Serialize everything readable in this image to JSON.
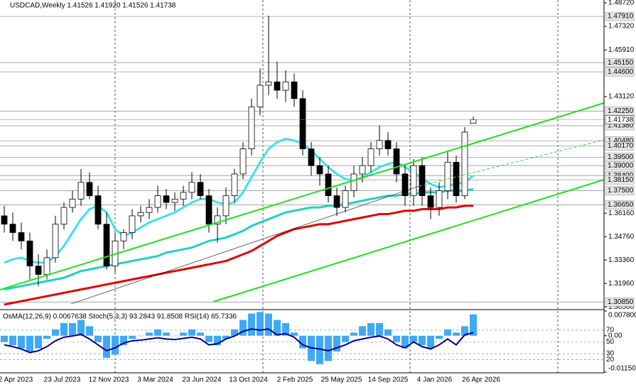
{
  "chart_data": [
    {
      "type": "candlestick",
      "title": "USDCAD,Weekly  1.41526 1.41920 1.41526 1.41738",
      "open": [
        1.36,
        1.355,
        1.35,
        1.345,
        1.33,
        1.325,
        1.335,
        1.355,
        1.365,
        1.37,
        1.38,
        1.372,
        1.355,
        1.33,
        1.345,
        1.35,
        1.36,
        1.362,
        1.365,
        1.372,
        1.368,
        1.37,
        1.374,
        1.38,
        1.372,
        1.355,
        1.36,
        1.372,
        1.385,
        1.4,
        1.425,
        1.438,
        1.44,
        1.435,
        1.44,
        1.43,
        1.4,
        1.39,
        1.385,
        1.372,
        1.365,
        1.375,
        1.385,
        1.39,
        1.4,
        1.405,
        1.4,
        1.385,
        1.372,
        1.39,
        1.372,
        1.365,
        1.375,
        1.392,
        1.372,
        1.41526
      ],
      "high": [
        1.366,
        1.362,
        1.356,
        1.35,
        1.337,
        1.34,
        1.36,
        1.368,
        1.375,
        1.388,
        1.386,
        1.378,
        1.362,
        1.35,
        1.352,
        1.364,
        1.366,
        1.37,
        1.378,
        1.376,
        1.374,
        1.378,
        1.386,
        1.385,
        1.376,
        1.365,
        1.377,
        1.388,
        1.404,
        1.43,
        1.448,
        1.4795,
        1.452,
        1.447,
        1.445,
        1.435,
        1.404,
        1.395,
        1.39,
        1.377,
        1.378,
        1.39,
        1.395,
        1.404,
        1.414,
        1.41,
        1.404,
        1.39,
        1.394,
        1.395,
        1.377,
        1.38,
        1.398,
        1.396,
        1.413,
        1.4192
      ],
      "low": [
        1.35,
        1.345,
        1.34,
        1.322,
        1.318,
        1.322,
        1.332,
        1.352,
        1.362,
        1.366,
        1.37,
        1.352,
        1.328,
        1.326,
        1.34,
        1.346,
        1.356,
        1.358,
        1.362,
        1.364,
        1.363,
        1.366,
        1.37,
        1.37,
        1.35,
        1.344,
        1.355,
        1.368,
        1.382,
        1.396,
        1.42,
        1.432,
        1.43,
        1.428,
        1.425,
        1.396,
        1.384,
        1.378,
        1.368,
        1.36,
        1.362,
        1.371,
        1.38,
        1.386,
        1.396,
        1.396,
        1.38,
        1.366,
        1.366,
        1.366,
        1.358,
        1.36,
        1.37,
        1.368,
        1.37,
        1.41526
      ],
      "close": [
        1.355,
        1.35,
        1.345,
        1.33,
        1.325,
        1.335,
        1.355,
        1.365,
        1.37,
        1.38,
        1.372,
        1.355,
        1.33,
        1.345,
        1.35,
        1.36,
        1.362,
        1.365,
        1.372,
        1.368,
        1.37,
        1.374,
        1.38,
        1.372,
        1.355,
        1.36,
        1.372,
        1.385,
        1.4,
        1.425,
        1.438,
        1.44,
        1.435,
        1.44,
        1.43,
        1.4,
        1.39,
        1.385,
        1.372,
        1.365,
        1.375,
        1.385,
        1.39,
        1.4,
        1.405,
        1.4,
        1.385,
        1.372,
        1.39,
        1.372,
        1.365,
        1.375,
        1.392,
        1.372,
        1.41,
        1.41738
      ],
      "series": [
        {
          "color": "#40e0f0",
          "values": [
            1.332,
            1.334,
            1.335,
            1.333,
            1.332,
            1.332,
            1.336,
            1.342,
            1.35,
            1.358,
            1.364,
            1.366,
            1.362,
            1.352,
            1.348,
            1.35,
            1.353,
            1.356,
            1.358,
            1.36,
            1.362,
            1.365,
            1.368,
            1.37,
            1.37,
            1.368,
            1.367,
            1.368,
            1.374,
            1.383,
            1.392,
            1.4,
            1.404,
            1.406,
            1.405,
            1.403,
            1.399,
            1.394,
            1.389,
            1.385,
            1.382,
            1.381,
            1.383,
            1.386,
            1.389,
            1.391,
            1.392,
            1.389,
            1.386,
            1.382,
            1.379,
            1.377,
            1.378,
            1.379,
            1.38,
            1.384
          ]
        },
        {
          "color": "#20d0c0",
          "values": [
            1.316,
            1.317,
            1.318,
            1.319,
            1.32,
            1.321,
            1.322,
            1.323,
            1.325,
            1.327,
            1.328,
            1.329,
            1.33,
            1.331,
            1.332,
            1.333,
            1.334,
            1.335,
            1.336,
            1.338,
            1.339,
            1.34,
            1.341,
            1.343,
            1.345,
            1.346,
            1.347,
            1.349,
            1.351,
            1.354,
            1.356,
            1.358,
            1.36,
            1.362,
            1.363,
            1.364,
            1.365,
            1.365,
            1.366,
            1.366,
            1.367,
            1.368,
            1.369,
            1.37,
            1.371,
            1.372,
            1.372,
            1.373,
            1.373,
            1.374,
            1.374,
            1.374,
            1.375,
            1.375,
            1.375,
            1.376
          ]
        },
        {
          "color": "#e00000",
          "values": [
            1.307,
            1.308,
            1.309,
            1.31,
            1.311,
            1.312,
            1.313,
            1.314,
            1.315,
            1.316,
            1.317,
            1.318,
            1.319,
            1.32,
            1.321,
            1.322,
            1.323,
            1.324,
            1.325,
            1.326,
            1.327,
            1.328,
            1.329,
            1.33,
            1.331,
            1.332,
            1.333,
            1.335,
            1.337,
            1.339,
            1.342,
            1.345,
            1.348,
            1.35,
            1.352,
            1.353,
            1.354,
            1.355,
            1.355,
            1.356,
            1.357,
            1.358,
            1.359,
            1.36,
            1.361,
            1.361,
            1.362,
            1.363,
            1.363,
            1.364,
            1.364,
            1.364,
            1.365,
            1.365,
            1.366,
            1.366
          ]
        }
      ],
      "ylim": [
        1.3044,
        1.4889
      ],
      "yticks": [
        {
          "value": 1.4872,
          "label": "1.48720"
        },
        {
          "value": 1.4732,
          "label": "1.47320"
        },
        {
          "value": 1.4591,
          "label": "1.45910"
        },
        {
          "value": 1.4312,
          "label": "1.43120"
        },
        {
          "value": 1.3616,
          "label": "1.36160"
        },
        {
          "value": 1.3476,
          "label": "1.34760"
        },
        {
          "value": 1.3336,
          "label": "1.33360"
        },
        {
          "value": 1.3196,
          "label": "1.31960"
        },
        {
          "value": 1.3056,
          "label": "1.30560"
        }
      ],
      "levels": [
        {
          "value": 1.4791,
          "label": "1.47910"
        },
        {
          "value": 1.4515,
          "label": "1.45150"
        },
        {
          "value": 1.446,
          "label": "1.44600"
        },
        {
          "value": 1.4225,
          "label": "1.42250"
        },
        {
          "value": 1.4138,
          "label": "1.41380"
        },
        {
          "value": 1.4048,
          "label": "1.40480"
        },
        {
          "value": 1.4017,
          "label": "1.40170"
        },
        {
          "value": 1.395,
          "label": "1.39500"
        },
        {
          "value": 1.39,
          "label": "1.39000"
        },
        {
          "value": 1.384,
          "label": "1.38400"
        },
        {
          "value": 1.3815,
          "label": "1.38150"
        },
        {
          "value": 1.375,
          "label": "1.37500"
        },
        {
          "value": 1.3665,
          "label": "1.36650"
        },
        {
          "value": 1.3085,
          "label": "1.30850"
        }
      ],
      "x_labels": [
        "2 Apr 2023",
        "23 Jul 2023",
        "12 Nov 2023",
        "3 Mar 2024",
        "23 Jun 2024",
        "13 Oct 2024",
        "2 Feb 2025",
        "25 May 2025",
        "14 Sep 2025",
        "4 Jan 2026",
        "26 Apr 2026"
      ]
    },
    {
      "type": "bar",
      "title": "OsMA(12,26,9) 0.0067638 Stoch(5,3,3) 93.2843 91.8508 RSI(14) 65.7336",
      "series": [
        {
          "color": "#3fa9f5",
          "values": [
            -0.002,
            -0.003,
            -0.004,
            -0.005,
            -0.004,
            -0.001,
            0.002,
            0.004,
            0.004,
            0.005,
            0.003,
            -0.002,
            -0.007,
            -0.006,
            -0.003,
            -0.001,
            0,
            0.001,
            0.002,
            0.001,
            0,
            0.001,
            0.002,
            0.001,
            -0.002,
            -0.003,
            -0.001,
            0.002,
            0.005,
            0.007,
            0.0075,
            0.007,
            0.005,
            0.004,
            0.001,
            -0.004,
            -0.008,
            -0.009,
            -0.008,
            -0.005,
            -0.002,
            0.001,
            0.003,
            0.004,
            0.004,
            0.002,
            -0.002,
            -0.004,
            -0.002,
            -0.003,
            -0.004,
            -0.001,
            0.002,
            0.001,
            0.003,
            0.0067638
          ]
        },
        {
          "color": "#00008b",
          "axis": "y2",
          "values": [
            45,
            42,
            38,
            32,
            35,
            42,
            52,
            58,
            60,
            63,
            55,
            45,
            35,
            40,
            48,
            52,
            53,
            55,
            57,
            55,
            54,
            56,
            58,
            55,
            45,
            47,
            55,
            60,
            68,
            72,
            70,
            72,
            62,
            64,
            58,
            45,
            40,
            38,
            35,
            40,
            45,
            52,
            55,
            58,
            60,
            55,
            45,
            40,
            50,
            42,
            38,
            45,
            55,
            45,
            62,
            65.7336
          ]
        }
      ],
      "ylim": [
        -0.0115,
        0.0078
      ],
      "yticks": [
        {
          "value": 0.0078,
          "label": "0.0078000"
        },
        {
          "value": 0,
          "label": "0.00"
        },
        {
          "value": -0.0115,
          "label": "-0.011500"
        }
      ],
      "y2lim": [
        0,
        100
      ],
      "y2ticks": [
        70,
        50,
        30,
        20
      ]
    }
  ]
}
